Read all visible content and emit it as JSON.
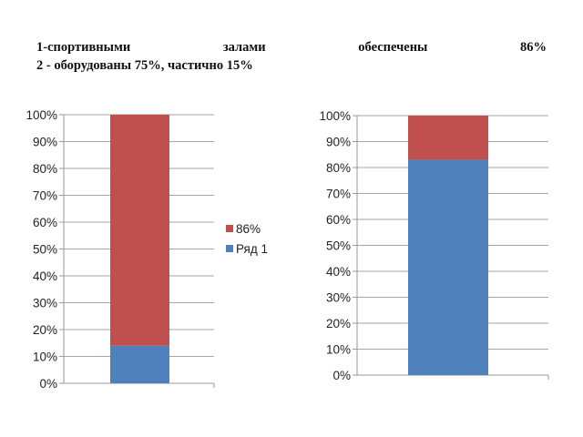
{
  "heading": {
    "line1_words": [
      "1-спортивными",
      "залами",
      "обеспечены",
      "86%"
    ],
    "line2": "2  - оборудованы 75%, частично 15%"
  },
  "colors": {
    "red": "#c0504d",
    "blue": "#4f81bd",
    "axis": "#999999",
    "grid": "#a6a6a6"
  },
  "chart_data": [
    {
      "type": "bar",
      "stacked": true,
      "percent": true,
      "categories": [
        ""
      ],
      "series": [
        {
          "name": "Ряд 1",
          "values": [
            14
          ],
          "color": "#4f81bd"
        },
        {
          "name": "86%",
          "values": [
            86
          ],
          "color": "#c0504d"
        }
      ],
      "ylim": [
        0,
        100
      ],
      "yticks": [
        "0%",
        "10%",
        "20%",
        "30%",
        "40%",
        "50%",
        "60%",
        "70%",
        "80%",
        "90%",
        "100%"
      ],
      "grid": true,
      "legend": {
        "placement": "right",
        "entries": [
          "86%",
          "Ряд 1"
        ]
      }
    },
    {
      "type": "bar",
      "stacked": true,
      "percent": true,
      "categories": [
        ""
      ],
      "series": [
        {
          "values": [
            83
          ],
          "color": "#4f81bd"
        },
        {
          "values": [
            17
          ],
          "color": "#c0504d"
        }
      ],
      "ylim": [
        0,
        100
      ],
      "yticks": [
        "0%",
        "10%",
        "20%",
        "30%",
        "40%",
        "50%",
        "60%",
        "70%",
        "80%",
        "90%",
        "100%"
      ],
      "grid": true
    }
  ]
}
